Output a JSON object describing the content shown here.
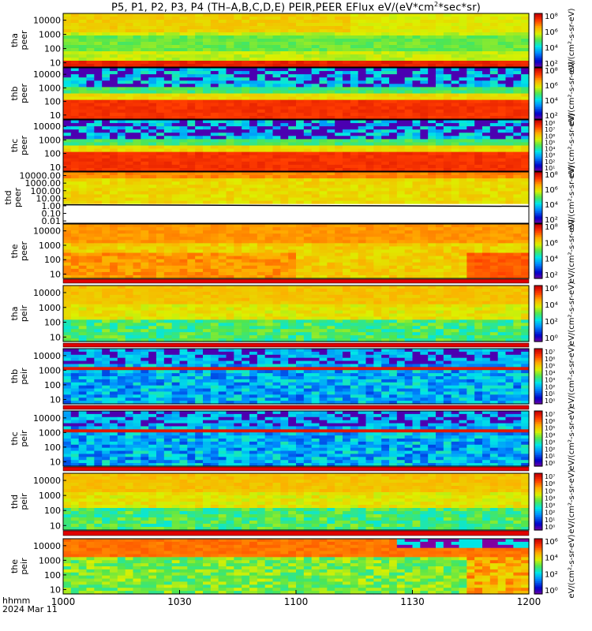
{
  "title": "P5, P1, P2, P3, P4 (TH–A,B,C,D,E) PEIR,PEER EFlux eV/(eV*cm²*sec*sr)",
  "title_parts": {
    "main": "P5, P1, P2, P3, P4 (TH–A,B,C,D,E) PEIR,PEER EFlux eV/(eV*cm",
    "sup": "2",
    "tail": "*sec*sr)"
  },
  "footer": {
    "hhmm": "hhmm",
    "date": "2024 Mar 11"
  },
  "colors": {
    "background": "#ffffff",
    "separator": "#e00000",
    "frame": "#000000"
  },
  "chart_data": {
    "type": "heatmap",
    "x_axis": {
      "ticks": [
        "1000",
        "1030",
        "1100",
        "1130",
        "1200"
      ],
      "xlim": [
        "10:00",
        "12:00"
      ],
      "units": "hhmm"
    },
    "colorbar_label": "eV/(cm2-s-sr-eV)",
    "panels": [
      {
        "name": "tha peer",
        "label": [
          "tha",
          "peer"
        ],
        "yticks": [
          "10000",
          "1000",
          "100",
          "10"
        ],
        "ylim": [
          5,
          30000
        ],
        "log": true,
        "cbar_ticks": [
          "10⁸",
          "10⁶",
          "10⁴",
          "10²"
        ],
        "cbar": "",
        "profile": "low-high",
        "cbar_label": "eV/(cm²-s-sr-eV)"
      },
      {
        "name": "thb peer",
        "label": [
          "thb",
          "peer"
        ],
        "yticks": [
          "10000",
          "1000",
          "100",
          "10"
        ],
        "ylim": [
          5,
          30000
        ],
        "log": true,
        "cbar_ticks": [
          "10⁸",
          "10⁶",
          "10⁴",
          "10²"
        ],
        "profile": "noisy-top",
        "cbar_label": "eV/(cm²-s-sr-eV)"
      },
      {
        "name": "thc peer",
        "label": [
          "thc",
          "peer"
        ],
        "yticks": [
          "10000",
          "1000",
          "100",
          "10"
        ],
        "ylim": [
          5,
          30000
        ],
        "log": true,
        "cbar_ticks": [
          "10⁸",
          "10⁷",
          "10⁶",
          "10⁵",
          "10⁴",
          "10³",
          "10²",
          "10¹"
        ],
        "profile": "noisy-top",
        "cbar_label": "eV/(cm²-s-sr-eV)"
      },
      {
        "name": "thd peer",
        "label": [
          "thd",
          "peer"
        ],
        "yticks": [
          "10000.00",
          "1000.00",
          "100.00",
          "10.00",
          "1.00",
          "0.10",
          "0.01"
        ],
        "ylim": [
          0.005,
          30000
        ],
        "log": true,
        "cbar_ticks": [
          "10⁸",
          "10⁶",
          "10⁴",
          "10²"
        ],
        "profile": "thd",
        "cbar_label": "eV/(cm²-s-sr-eV)"
      },
      {
        "name": "the peer",
        "label": [
          "the",
          "peer"
        ],
        "yticks": [
          "10000",
          "1000",
          "100",
          "10"
        ],
        "ylim": [
          5,
          30000
        ],
        "log": true,
        "cbar_ticks": [
          "10⁸",
          "10⁶",
          "10⁴",
          "10²"
        ],
        "profile": "the",
        "cbar_label": "eV/(cm²-s-sr-eV)"
      },
      {
        "name": "tha peir",
        "label": [
          "tha",
          "peir"
        ],
        "yticks": [
          "10000",
          "1000",
          "100",
          "10"
        ],
        "ylim": [
          5,
          30000
        ],
        "log": true,
        "cbar_ticks": [
          "10⁶",
          "10⁴",
          "10²",
          "10⁰"
        ],
        "profile": "peir",
        "cbar_label": "eV/(cm²-s-sr-eV)"
      },
      {
        "name": "thb peir",
        "label": [
          "thb",
          "peir"
        ],
        "yticks": [
          "10000",
          "1000",
          "100",
          "10"
        ],
        "ylim": [
          5,
          30000
        ],
        "log": true,
        "cbar_ticks": [
          "10⁷",
          "10⁶",
          "10⁵",
          "10⁴",
          "10³",
          "10²",
          "10¹",
          "10⁰"
        ],
        "profile": "band",
        "cbar_label": "eV/(cm²-s-sr-eV)"
      },
      {
        "name": "thc peir",
        "label": [
          "thc",
          "peir"
        ],
        "yticks": [
          "10000",
          "1000",
          "100",
          "10"
        ],
        "ylim": [
          5,
          30000
        ],
        "log": true,
        "cbar_ticks": [
          "10⁷",
          "10⁶",
          "10⁵",
          "10⁴",
          "10³",
          "10²",
          "10¹",
          "10⁰"
        ],
        "profile": "band",
        "cbar_label": "eV/(cm²-s-sr-eV)"
      },
      {
        "name": "thd peir",
        "label": [
          "thd",
          "peir"
        ],
        "yticks": [
          "10000",
          "1000",
          "100",
          "10"
        ],
        "ylim": [
          5,
          30000
        ],
        "log": true,
        "cbar_ticks": [
          "10⁷",
          "10⁶",
          "10⁵",
          "10⁴",
          "10³",
          "10²",
          "10¹",
          "10⁰"
        ],
        "profile": "peir",
        "cbar_label": "eV/(cm²-s-sr-eV)"
      },
      {
        "name": "the peir",
        "label": [
          "the",
          "peir"
        ],
        "yticks": [
          "10000",
          "1000",
          "100",
          "10"
        ],
        "ylim": [
          5,
          30000
        ],
        "log": true,
        "cbar_ticks": [
          "10⁶",
          "10⁴",
          "10²",
          "10⁰"
        ],
        "profile": "thepeir",
        "cbar_label": "eV/(cm²-s-sr-eV)"
      }
    ]
  }
}
